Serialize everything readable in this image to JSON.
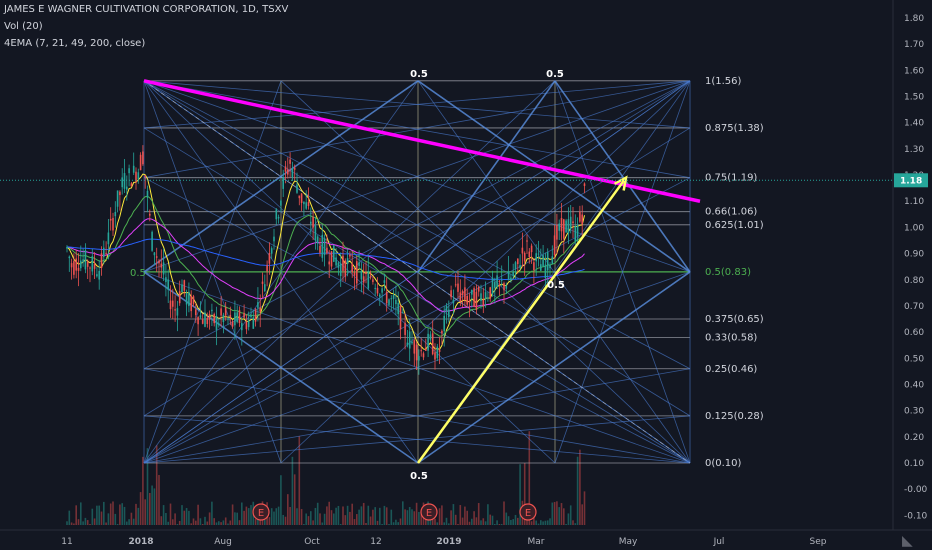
{
  "header": {
    "title": "JAMES E WAGNER CULTIVATION CORPORATION, 1D, TSXV",
    "volume": "Vol (20)",
    "ema": "4EMA (7, 21, 49, 200, close)"
  },
  "current_price": "1.18",
  "colors": {
    "background": "#131722",
    "up": "#26a69a",
    "down": "#ef5350",
    "trendline_magenta": "#ff00ff",
    "arrow_yellow": "#ffff66",
    "fib_grid": "#4a7bd0",
    "fib_level": "#b2b5be",
    "half_level": "#4caf50",
    "ema7": "#ffeb3b",
    "ema21": "#4caf50",
    "ema49": "#e040fb",
    "ema200": "#2962ff"
  },
  "fib_levels": [
    {
      "label": "1(1.56)",
      "value": 1.56
    },
    {
      "label": "0.875(1.38)",
      "value": 1.38
    },
    {
      "label": "0.75(1.19)",
      "value": 1.19
    },
    {
      "label": "0.66(1.06)",
      "value": 1.06
    },
    {
      "label": "0.625(1.01)",
      "value": 1.01
    },
    {
      "label": "0.5(0.83)",
      "value": 0.83
    },
    {
      "label": "0.375(0.65)",
      "value": 0.65
    },
    {
      "label": "0.33(0.58)",
      "value": 0.58
    },
    {
      "label": "0.25(0.46)",
      "value": 0.46
    },
    {
      "label": "0.125(0.28)",
      "value": 0.28
    },
    {
      "label": "0(0.10)",
      "value": 0.1
    }
  ],
  "grid_labels": {
    "half": "0.5",
    "left_half": "0.5",
    "mid_quarter": "0.5"
  },
  "earnings_badge": "E",
  "chart_data": {
    "type": "candlestick",
    "title": "JAMES E WAGNER CULTIVATION CORPORATION, 1D, TSXV",
    "x_ticks": [
      "11",
      "2018",
      "Aug",
      "Oct",
      "12",
      "2019",
      "Mar",
      "May",
      "Jul",
      "Sep"
    ],
    "y_ticks": [
      "1.80",
      "1.70",
      "1.60",
      "1.50",
      "1.40",
      "1.30",
      "1.20",
      "1.10",
      "1.00",
      "0.90",
      "0.80",
      "0.70",
      "0.60",
      "0.50",
      "0.40",
      "0.30",
      "0.20",
      "0.10",
      "-0.00",
      "-0.10"
    ],
    "ylim": [
      -0.13,
      1.85
    ],
    "price_path": [
      [
        67,
        0.92
      ],
      [
        72,
        0.85
      ],
      [
        80,
        0.88
      ],
      [
        90,
        0.86
      ],
      [
        100,
        0.84
      ],
      [
        108,
        0.95
      ],
      [
        116,
        1.08
      ],
      [
        124,
        1.18
      ],
      [
        132,
        1.2
      ],
      [
        138,
        1.22
      ],
      [
        143,
        1.28
      ],
      [
        148,
        1.1
      ],
      [
        152,
        0.95
      ],
      [
        158,
        0.88
      ],
      [
        164,
        0.82
      ],
      [
        170,
        0.73
      ],
      [
        176,
        0.68
      ],
      [
        182,
        0.78
      ],
      [
        188,
        0.72
      ],
      [
        194,
        0.7
      ],
      [
        200,
        0.66
      ],
      [
        208,
        0.65
      ],
      [
        216,
        0.64
      ],
      [
        224,
        0.66
      ],
      [
        232,
        0.63
      ],
      [
        240,
        0.65
      ],
      [
        248,
        0.64
      ],
      [
        254,
        0.66
      ],
      [
        260,
        0.72
      ],
      [
        266,
        0.82
      ],
      [
        272,
        0.95
      ],
      [
        278,
        1.06
      ],
      [
        284,
        1.18
      ],
      [
        290,
        1.25
      ],
      [
        295,
        1.2
      ],
      [
        300,
        1.12
      ],
      [
        306,
        1.08
      ],
      [
        312,
        1.02
      ],
      [
        318,
        0.95
      ],
      [
        324,
        0.92
      ],
      [
        330,
        0.9
      ],
      [
        336,
        0.88
      ],
      [
        342,
        0.85
      ],
      [
        348,
        0.86
      ],
      [
        354,
        0.84
      ],
      [
        360,
        0.82
      ],
      [
        366,
        0.8
      ],
      [
        372,
        0.82
      ],
      [
        378,
        0.78
      ],
      [
        384,
        0.76
      ],
      [
        390,
        0.72
      ],
      [
        396,
        0.7
      ],
      [
        402,
        0.64
      ],
      [
        408,
        0.58
      ],
      [
        414,
        0.55
      ],
      [
        420,
        0.52
      ],
      [
        426,
        0.55
      ],
      [
        432,
        0.56
      ],
      [
        438,
        0.5
      ],
      [
        444,
        0.62
      ],
      [
        450,
        0.72
      ],
      [
        456,
        0.76
      ],
      [
        462,
        0.74
      ],
      [
        470,
        0.72
      ],
      [
        478,
        0.73
      ],
      [
        486,
        0.75
      ],
      [
        494,
        0.77
      ],
      [
        502,
        0.78
      ],
      [
        510,
        0.8
      ],
      [
        516,
        0.83
      ],
      [
        522,
        0.9
      ],
      [
        528,
        0.92
      ],
      [
        534,
        0.88
      ],
      [
        540,
        0.86
      ],
      [
        546,
        0.85
      ],
      [
        552,
        0.9
      ],
      [
        558,
        0.98
      ],
      [
        564,
        1.0
      ],
      [
        570,
        1.01
      ],
      [
        576,
        0.98
      ],
      [
        582,
        1.05
      ],
      [
        586,
        1.18
      ]
    ],
    "volume_ylim": [
      0,
      0.5
    ],
    "fib_fan": {
      "high": 1.56,
      "low": 0.1,
      "mid": 0.83
    },
    "trendlines": [
      {
        "name": "magenta-downtrend",
        "from": [
          144,
          1.56
        ],
        "to": [
          700,
          1.1
        ]
      },
      {
        "name": "yellow-uptrend-arrow",
        "from": [
          418,
          0.1
        ],
        "to": [
          626,
          1.19
        ]
      }
    ]
  }
}
